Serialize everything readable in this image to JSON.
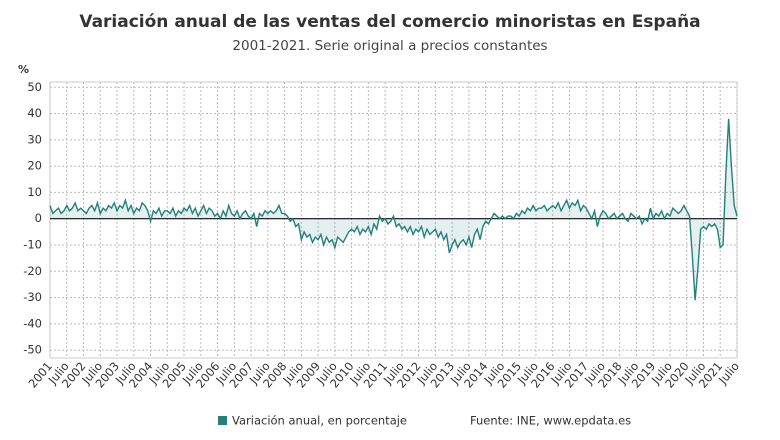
{
  "chart_data": {
    "type": "line",
    "title": "Variación anual de las ventas del comercio minoristas en España",
    "subtitle": "2001-2021. Serie original a precios constantes",
    "y_unit": "%",
    "source": "Fuente: INE, www.epdata.es",
    "categories": [
      "2001",
      null,
      null,
      null,
      null,
      null,
      "Julio",
      null,
      null,
      null,
      null,
      null,
      "2002",
      null,
      null,
      null,
      null,
      null,
      "Julio",
      null,
      null,
      null,
      null,
      null,
      "2003",
      null,
      null,
      null,
      null,
      null,
      "Julio",
      null,
      null,
      null,
      null,
      null,
      "2004",
      null,
      null,
      null,
      null,
      null,
      "Julio",
      null,
      null,
      null,
      null,
      null,
      "2005",
      null,
      null,
      null,
      null,
      null,
      "Julio",
      null,
      null,
      null,
      null,
      null,
      "2006",
      null,
      null,
      null,
      null,
      null,
      "Julio",
      null,
      null,
      null,
      null,
      null,
      "2007",
      null,
      null,
      null,
      null,
      null,
      "Julio",
      null,
      null,
      null,
      null,
      null,
      "2008",
      null,
      null,
      null,
      null,
      null,
      "Julio",
      null,
      null,
      null,
      null,
      null,
      "2009",
      null,
      null,
      null,
      null,
      null,
      "Julio",
      null,
      null,
      null,
      null,
      null,
      "2010",
      null,
      null,
      null,
      null,
      null,
      "Julio",
      null,
      null,
      null,
      null,
      null,
      "2011",
      null,
      null,
      null,
      null,
      null,
      "Julio",
      null,
      null,
      null,
      null,
      null,
      "2012",
      null,
      null,
      null,
      null,
      null,
      "Julio",
      null,
      null,
      null,
      null,
      null,
      "2013",
      null,
      null,
      null,
      null,
      null,
      "Julio",
      null,
      null,
      null,
      null,
      null,
      "2014",
      null,
      null,
      null,
      null,
      null,
      "Julio",
      null,
      null,
      null,
      null,
      null,
      "2015",
      null,
      null,
      null,
      null,
      null,
      "Julio",
      null,
      null,
      null,
      null,
      null,
      "2016",
      null,
      null,
      null,
      null,
      null,
      "Julio",
      null,
      null,
      null,
      null,
      null,
      "2017",
      null,
      null,
      null,
      null,
      null,
      "Julio",
      null,
      null,
      null,
      null,
      null,
      "2018",
      null,
      null,
      null,
      null,
      null,
      "Julio",
      null,
      null,
      null,
      null,
      null,
      "2019",
      null,
      null,
      null,
      null,
      null,
      "Julio",
      null,
      null,
      null,
      null,
      null,
      "2020",
      null,
      null,
      null,
      null,
      null,
      "Julio",
      null,
      null,
      null,
      null,
      null,
      "2021",
      null,
      null,
      null,
      null,
      null,
      "Julio"
    ],
    "series": [
      {
        "name": "Variación anual, en porcentaje",
        "color": "#23807a",
        "values": [
          5,
          2,
          3,
          4,
          2,
          3,
          5,
          3,
          4,
          6,
          3,
          4,
          3,
          2,
          4,
          5,
          3,
          6,
          2,
          4,
          3,
          5,
          4,
          6,
          3,
          5,
          4,
          7,
          3,
          5,
          2,
          4,
          3,
          6,
          5,
          3,
          -1,
          3,
          2,
          4,
          1,
          3,
          3,
          2,
          4,
          1,
          3,
          2,
          4,
          3,
          5,
          2,
          4,
          1,
          3,
          5,
          2,
          4,
          3,
          1,
          2,
          0,
          3,
          1,
          5,
          2,
          1,
          3,
          0,
          2,
          3,
          1,
          0,
          2,
          -3,
          2,
          1,
          3,
          2,
          3,
          2,
          3,
          5,
          2,
          2,
          1,
          -1,
          0,
          -3,
          -2,
          -8,
          -5,
          -7,
          -6,
          -9,
          -7,
          -8,
          -6,
          -10,
          -7,
          -9,
          -8,
          -11,
          -7,
          -8,
          -9,
          -7,
          -5,
          -4,
          -5,
          -3,
          -6,
          -4,
          -5,
          -3,
          -6,
          -2,
          -4,
          1,
          -1,
          0,
          -2,
          -1,
          1,
          -3,
          -2,
          -4,
          -3,
          -5,
          -3,
          -6,
          -4,
          -5,
          -3,
          -7,
          -4,
          -6,
          -5,
          -4,
          -7,
          -5,
          -8,
          -6,
          -13,
          -10,
          -8,
          -11,
          -9,
          -8,
          -10,
          -7,
          -11,
          -6,
          -4,
          -8,
          -3,
          -1,
          -2,
          0,
          2,
          1,
          0,
          1,
          0,
          1,
          1,
          0,
          2,
          1,
          3,
          2,
          4,
          3,
          5,
          3,
          4,
          4,
          5,
          3,
          4,
          5,
          4,
          6,
          3,
          5,
          7,
          4,
          6,
          5,
          7,
          3,
          5,
          4,
          2,
          0,
          3,
          -3,
          1,
          3,
          2,
          0,
          1,
          2,
          0,
          1,
          2,
          0,
          -1,
          2,
          1,
          0,
          1,
          -2,
          0,
          -1,
          4,
          0,
          2,
          1,
          3,
          0,
          2,
          1,
          4,
          3,
          2,
          3,
          5,
          3,
          1,
          -14,
          -31,
          -19,
          -4,
          -3,
          -4,
          -2,
          -3,
          -2,
          -4,
          -11,
          -10,
          17,
          38,
          20,
          5,
          1
        ]
      }
    ],
    "ylim": [
      -53,
      52
    ],
    "yticks": [
      -50,
      -40,
      -30,
      -20,
      -10,
      0,
      10,
      20,
      30,
      40,
      50
    ],
    "grid": true
  }
}
